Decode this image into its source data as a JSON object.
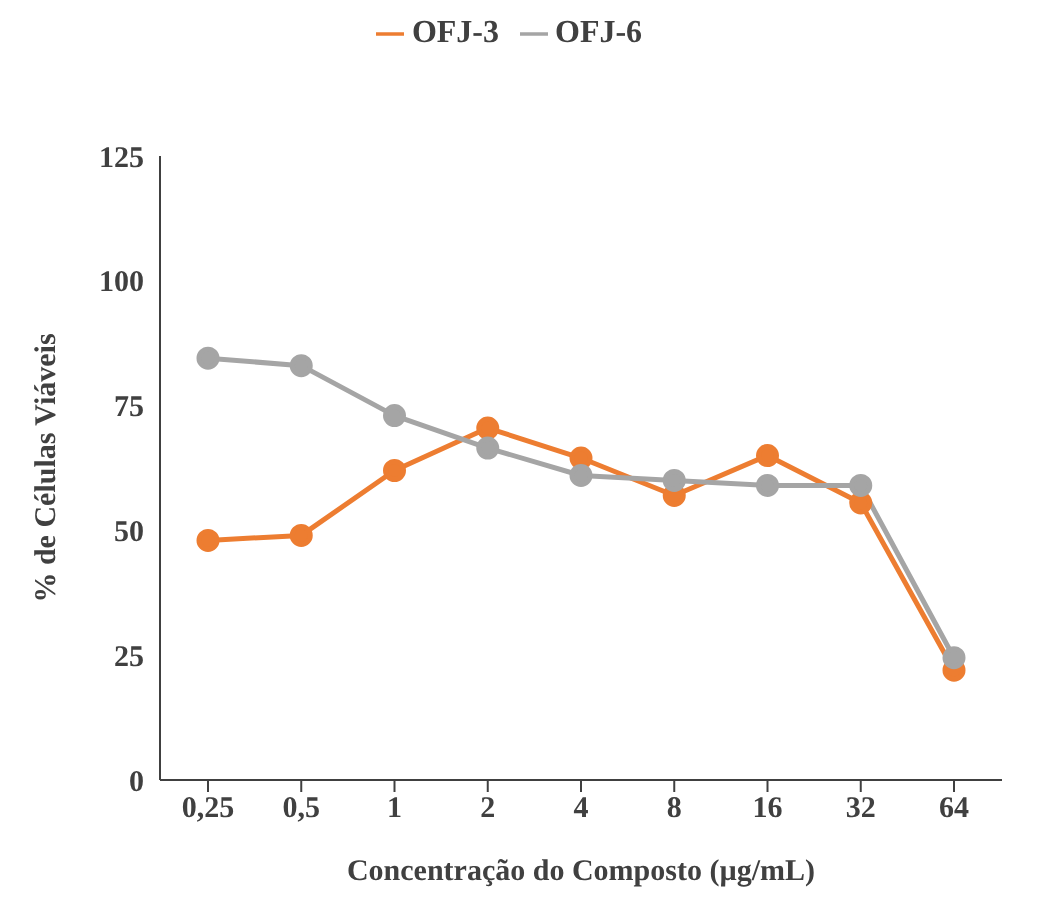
{
  "chart_data": {
    "type": "line",
    "xlabel": "Concentração do Composto (µg/mL)",
    "ylabel": "% de Células Viáveis",
    "categories": [
      "0,25",
      "0,5",
      "1",
      "2",
      "4",
      "8",
      "16",
      "32",
      "64"
    ],
    "series": [
      {
        "name": "OFJ-3",
        "color": "#ed7d31",
        "values": [
          48,
          49,
          62,
          70.5,
          64.5,
          57,
          65,
          55.5,
          22
        ]
      },
      {
        "name": "OFJ-6",
        "color": "#a5a5a5",
        "values": [
          84.5,
          83,
          73,
          66.5,
          61,
          60,
          59,
          59,
          24.5
        ]
      }
    ],
    "ylim": [
      0,
      125
    ],
    "yticks": [
      0,
      25,
      50,
      75,
      100,
      125
    ],
    "grid": false,
    "legend": "top",
    "marker": "circle",
    "line_style": "solid"
  }
}
